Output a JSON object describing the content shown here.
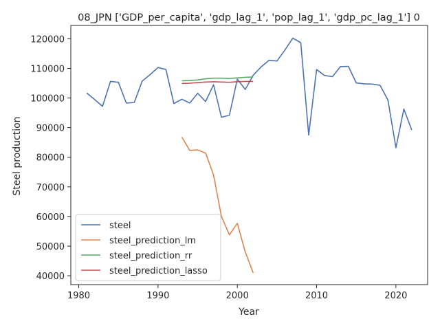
{
  "chart_data": {
    "type": "line",
    "title": "08_JPN ['GDP_per_capita', 'gdp_lag_1', 'pop_lag_1', 'gdp_pc_lag_1'] 0",
    "xlabel": "Year",
    "ylabel": "Steel production",
    "xlim": [
      1979,
      2024
    ],
    "ylim": [
      37000,
      124500
    ],
    "xticks": [
      1980,
      1990,
      2000,
      2010,
      2020
    ],
    "yticks": [
      40000,
      50000,
      60000,
      70000,
      80000,
      90000,
      100000,
      110000,
      120000
    ],
    "grid": false,
    "legend_position": "lower-left",
    "series": [
      {
        "name": "steel",
        "color": "#4c72b0",
        "x": [
          1981,
          1982,
          1983,
          1984,
          1985,
          1986,
          1987,
          1988,
          1989,
          1990,
          1991,
          1992,
          1993,
          1994,
          1995,
          1996,
          1997,
          1998,
          1999,
          2000,
          2001,
          2002,
          2003,
          2004,
          2005,
          2006,
          2007,
          2008,
          2009,
          2010,
          2011,
          2012,
          2013,
          2014,
          2015,
          2016,
          2017,
          2018,
          2019,
          2020,
          2021,
          2022
        ],
        "values": [
          101700,
          99500,
          97200,
          105600,
          105300,
          98300,
          98500,
          105700,
          107900,
          110300,
          109600,
          98100,
          99600,
          98300,
          101600,
          98800,
          104500,
          93500,
          94200,
          106400,
          102900,
          107700,
          110500,
          112700,
          112500,
          116200,
          120200,
          118700,
          87500,
          109600,
          107600,
          107200,
          110600,
          110700,
          105100,
          104800,
          104700,
          104300,
          99300,
          83200,
          96300,
          89200
        ]
      },
      {
        "name": "steel_prediction_lm",
        "color": "#dd8452",
        "x": [
          1993,
          1994,
          1995,
          1996,
          1997,
          1998,
          1999,
          2000,
          2001,
          2002
        ],
        "values": [
          86800,
          82300,
          82500,
          81400,
          74000,
          60000,
          53800,
          57700,
          48000,
          41000
        ]
      },
      {
        "name": "steel_prediction_rr",
        "color": "#55a868",
        "x": [
          1993,
          1994,
          1995,
          1996,
          1997,
          1998,
          1999,
          2000,
          2001,
          2002
        ],
        "values": [
          105800,
          105900,
          106100,
          106500,
          106700,
          106700,
          106600,
          106800,
          107000,
          107100
        ]
      },
      {
        "name": "steel_prediction_lasso",
        "color": "#c44e52",
        "x": [
          1993,
          1994,
          1995,
          1996,
          1997,
          1998,
          1999,
          2000,
          2001,
          2002
        ],
        "values": [
          104900,
          105000,
          105200,
          105400,
          105500,
          105400,
          105300,
          105500,
          105600,
          105600
        ]
      }
    ]
  }
}
